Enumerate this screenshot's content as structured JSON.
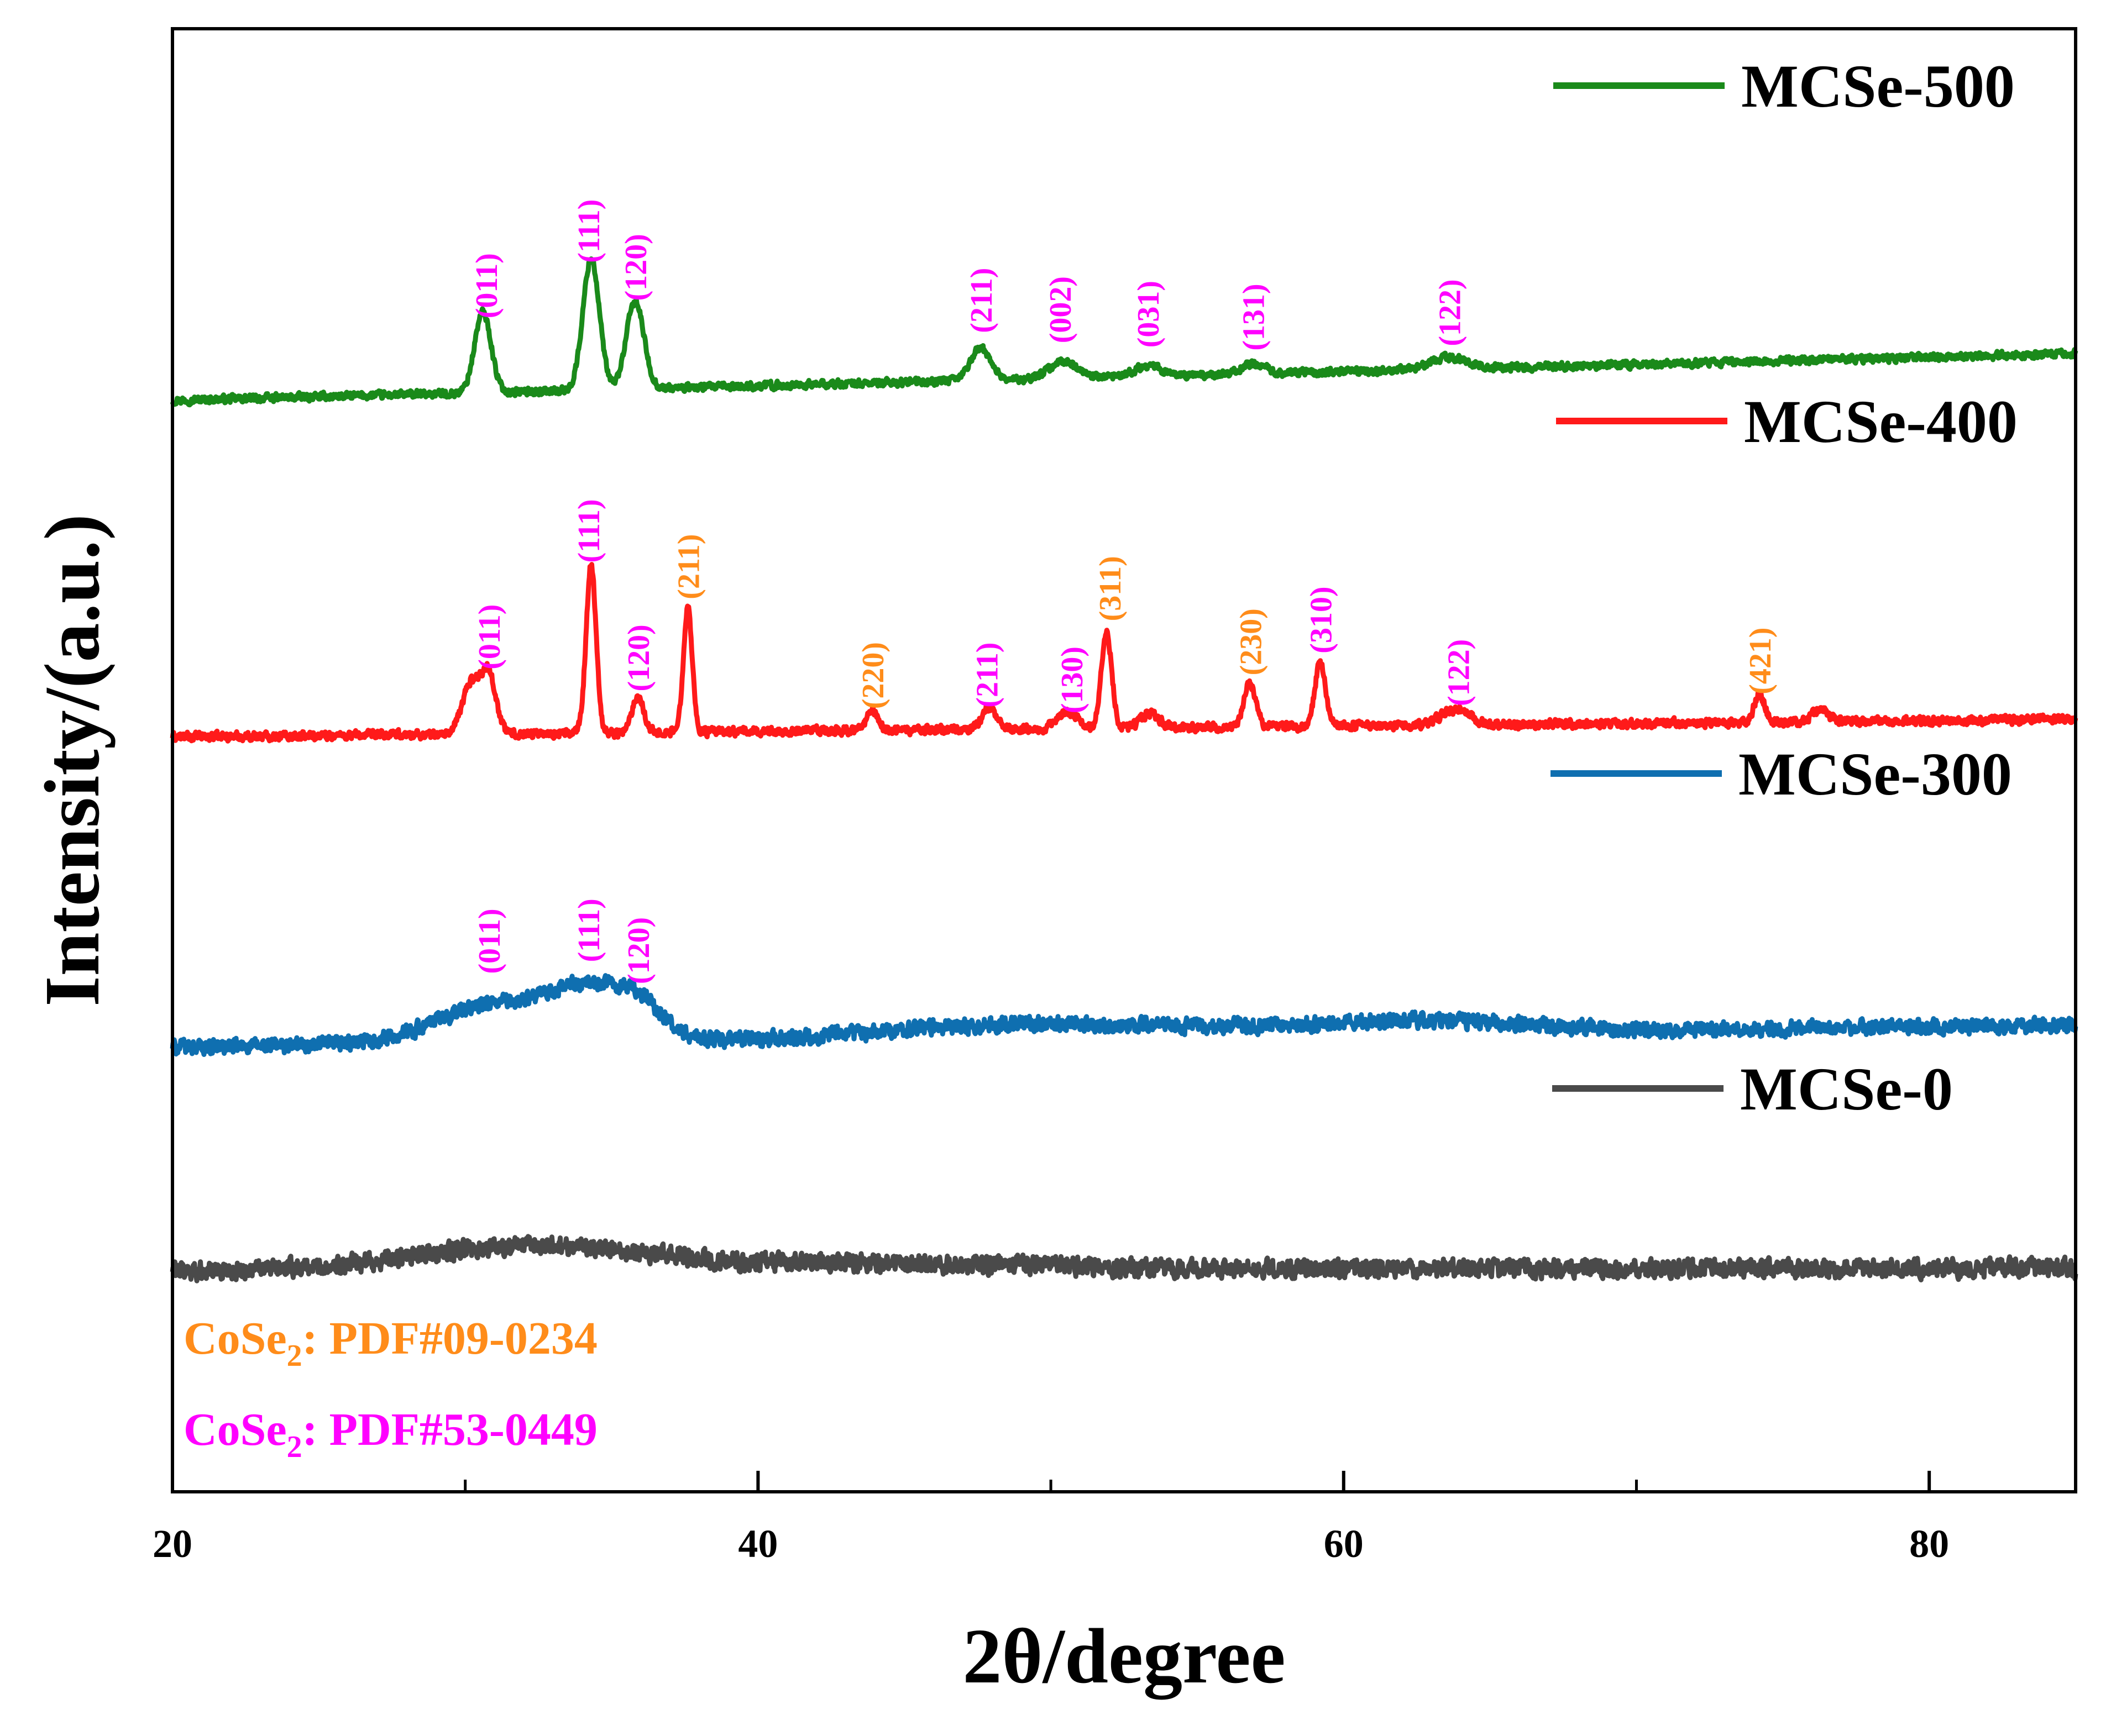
{
  "chart_data": {
    "type": "line",
    "title": "",
    "xlabel": "2θ/degree",
    "ylabel": "Intensity/(a.u.)",
    "xlim": [
      20,
      85
    ],
    "ylim": [
      0,
      100
    ],
    "x_ticks": [
      20,
      40,
      60,
      80
    ],
    "x_minor_ticks": [
      30,
      50,
      70
    ],
    "y_ticks": [],
    "grid": false,
    "legend_position": "right, beside each trace",
    "colors": {
      "magenta": "#ff00ff",
      "orange": "#ff8c1a"
    },
    "series": [
      {
        "name": "MCSe-500",
        "color": "#1a8a1a",
        "baseline_start": 74.6,
        "baseline_end": 77.8,
        "noise": 0.35,
        "peaks": [
          {
            "x": 30.6,
            "height": 5.5,
            "width": 0.28
          },
          {
            "x": 34.3,
            "height": 9.0,
            "width": 0.28
          },
          {
            "x": 35.8,
            "height": 6.0,
            "width": 0.3
          },
          {
            "x": 47.6,
            "height": 2.2,
            "width": 0.35
          },
          {
            "x": 50.4,
            "height": 1.2,
            "width": 0.45
          },
          {
            "x": 53.3,
            "height": 0.8,
            "width": 0.4
          },
          {
            "x": 56.9,
            "height": 0.7,
            "width": 0.4
          },
          {
            "x": 63.6,
            "height": 0.8,
            "width": 0.6
          }
        ]
      },
      {
        "name": "MCSe-400",
        "color": "#ff1a1a",
        "baseline_start": 51.6,
        "baseline_end": 52.8,
        "noise": 0.4,
        "peaks": [
          {
            "x": 30.2,
            "height": 3.5,
            "width": 0.3
          },
          {
            "x": 30.8,
            "height": 4.0,
            "width": 0.25
          },
          {
            "x": 34.3,
            "height": 11.5,
            "width": 0.17
          },
          {
            "x": 35.9,
            "height": 2.5,
            "width": 0.2
          },
          {
            "x": 37.6,
            "height": 8.6,
            "width": 0.15
          },
          {
            "x": 43.9,
            "height": 1.3,
            "width": 0.2
          },
          {
            "x": 47.9,
            "height": 1.5,
            "width": 0.25
          },
          {
            "x": 50.6,
            "height": 1.1,
            "width": 0.35
          },
          {
            "x": 51.9,
            "height": 6.5,
            "width": 0.18
          },
          {
            "x": 53.4,
            "height": 1.0,
            "width": 0.3
          },
          {
            "x": 56.8,
            "height": 3.0,
            "width": 0.2
          },
          {
            "x": 59.2,
            "height": 4.4,
            "width": 0.18
          },
          {
            "x": 63.8,
            "height": 1.0,
            "width": 0.5
          },
          {
            "x": 74.2,
            "height": 1.9,
            "width": 0.18
          },
          {
            "x": 76.3,
            "height": 0.9,
            "width": 0.25
          }
        ]
      },
      {
        "name": "MCSe-300",
        "color": "#0f6fb0",
        "baseline_start": 30.4,
        "baseline_end": 31.9,
        "noise": 0.7,
        "peaks": [
          {
            "x": 31.0,
            "height": 2.6,
            "width": 2.0
          },
          {
            "x": 34.3,
            "height": 3.2,
            "width": 1.3
          },
          {
            "x": 36.0,
            "height": 1.8,
            "width": 0.8
          },
          {
            "x": 48.0,
            "height": 0.8,
            "width": 4.0
          },
          {
            "x": 57.0,
            "height": 0.5,
            "width": 5.0
          },
          {
            "x": 63.5,
            "height": 0.6,
            "width": 3.0
          }
        ]
      },
      {
        "name": "MCSe-0",
        "color": "#4a4a4a",
        "baseline_start": 15.1,
        "baseline_end": 15.3,
        "noise": 0.85,
        "peaks": [
          {
            "x": 32.5,
            "height": 1.7,
            "width": 4.0
          },
          {
            "x": 45.0,
            "height": 0.4,
            "width": 5.0
          }
        ]
      }
    ],
    "annotations": [
      {
        "text": "(011)",
        "x": 30.7,
        "y": 80.2,
        "color": "#ff00ff",
        "series": "MCSe-500"
      },
      {
        "text": "(111)",
        "x": 34.2,
        "y": 84.0,
        "color": "#ff00ff",
        "series": "MCSe-500"
      },
      {
        "text": "(120)",
        "x": 35.8,
        "y": 81.4,
        "color": "#ff00ff",
        "series": "MCSe-500"
      },
      {
        "text": "(211)",
        "x": 47.6,
        "y": 79.2,
        "color": "#ff00ff",
        "series": "MCSe-500"
      },
      {
        "text": "(002)",
        "x": 50.3,
        "y": 78.5,
        "color": "#ff00ff",
        "series": "MCSe-500"
      },
      {
        "text": "(031)",
        "x": 53.3,
        "y": 78.2,
        "color": "#ff00ff",
        "series": "MCSe-500"
      },
      {
        "text": "(131)",
        "x": 56.9,
        "y": 78.0,
        "color": "#ff00ff",
        "series": "MCSe-500"
      },
      {
        "text": "(122)",
        "x": 63.6,
        "y": 78.3,
        "color": "#ff00ff",
        "series": "MCSe-500"
      },
      {
        "text": "(011)",
        "x": 30.8,
        "y": 56.2,
        "color": "#ff00ff",
        "series": "MCSe-400"
      },
      {
        "text": "(111)",
        "x": 34.2,
        "y": 63.5,
        "color": "#ff00ff",
        "series": "MCSe-400"
      },
      {
        "text": "(120)",
        "x": 35.9,
        "y": 54.7,
        "color": "#ff00ff",
        "series": "MCSe-400"
      },
      {
        "text": "(211)",
        "x": 37.6,
        "y": 61.0,
        "color": "#ff8c1a",
        "series": "MCSe-400"
      },
      {
        "text": "(220)",
        "x": 43.9,
        "y": 53.5,
        "color": "#ff8c1a",
        "series": "MCSe-400"
      },
      {
        "text": "(211)",
        "x": 47.8,
        "y": 53.6,
        "color": "#ff00ff",
        "series": "MCSe-400"
      },
      {
        "text": "(130)",
        "x": 50.7,
        "y": 53.2,
        "color": "#ff00ff",
        "series": "MCSe-400"
      },
      {
        "text": "(311)",
        "x": 52.0,
        "y": 59.5,
        "color": "#ff8c1a",
        "series": "MCSe-400"
      },
      {
        "text": "(230)",
        "x": 56.8,
        "y": 55.8,
        "color": "#ff8c1a",
        "series": "MCSe-400"
      },
      {
        "text": "(310)",
        "x": 59.2,
        "y": 57.3,
        "color": "#ff00ff",
        "series": "MCSe-400"
      },
      {
        "text": "(122)",
        "x": 63.9,
        "y": 53.7,
        "color": "#ff00ff",
        "series": "MCSe-400"
      },
      {
        "text": "(421)",
        "x": 74.2,
        "y": 54.5,
        "color": "#ff8c1a",
        "series": "MCSe-400"
      },
      {
        "text": "(011)",
        "x": 30.8,
        "y": 35.4,
        "color": "#ff00ff",
        "series": "MCSe-300"
      },
      {
        "text": "(111)",
        "x": 34.2,
        "y": 36.2,
        "color": "#ff00ff",
        "series": "MCSe-300"
      },
      {
        "text": "(120)",
        "x": 35.9,
        "y": 34.7,
        "color": "#ff00ff",
        "series": "MCSe-300"
      }
    ],
    "reference_notes": [
      {
        "compound_base": "CoSe",
        "subscript": "2",
        "suffix": ": PDF#09-0234",
        "color": "#ff8c1a"
      },
      {
        "compound_base": "CoSe",
        "subscript": "2",
        "suffix": ": PDF#53-0449",
        "color": "#ff00ff"
      }
    ]
  }
}
